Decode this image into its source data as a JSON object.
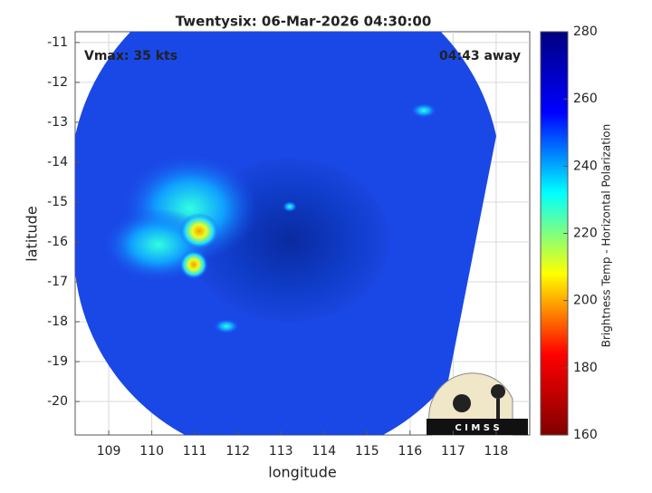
{
  "chart_data": {
    "type": "image",
    "title": "Twentysix: 06-Mar-2026 04:30:00",
    "annotations": [
      "Vmax: 35 kts",
      "04:43 away"
    ],
    "xlabel": "longitude",
    "ylabel": "latitude",
    "xlim": [
      108.22,
      118.78
    ],
    "xticks": [
      109,
      110,
      111,
      112,
      113,
      114,
      115,
      116,
      117,
      118
    ],
    "ylim": [
      -20.84,
      -10.73
    ],
    "yticks": [
      -20,
      -19,
      -18,
      -17,
      -16,
      -15,
      -14,
      -13,
      -12,
      -11
    ],
    "grid": true,
    "colorbar": {
      "label": "Brightness Temp - Horizontal Polarization",
      "clim": [
        160,
        280
      ],
      "ticks": [
        160,
        180,
        200,
        220,
        240,
        260,
        280
      ],
      "colormap": [
        "#800000",
        "#ff0000",
        "#ffff00",
        "#00ffff",
        "#0000ff",
        "#000080"
      ]
    },
    "logo": "C I M S S"
  }
}
